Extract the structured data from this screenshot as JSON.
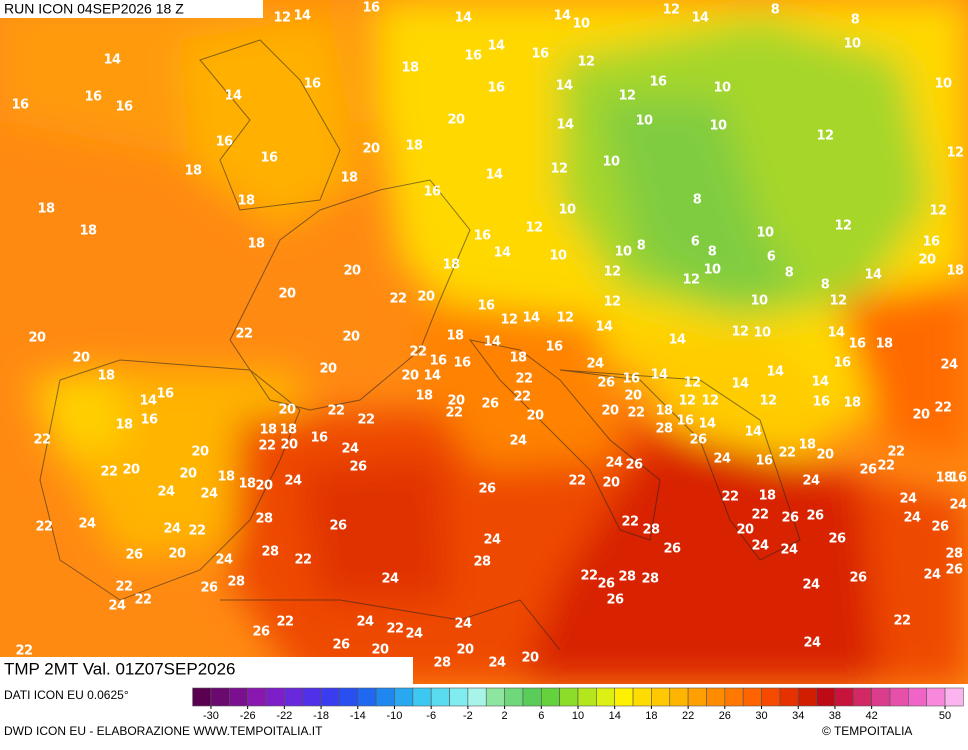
{
  "header": {
    "run": "RUN ICON 04SEP2026 18 Z",
    "field": "TMP 2MT Val. 01Z07SEP2026",
    "source": "DATI ICON EU 0.0625°",
    "credit": "DWD ICON EU - ELABORAZIONE WWW.TEMPOITALIA.IT",
    "brand": "© TEMPOITALIA"
  },
  "map": {
    "labels": [
      12,
      14,
      16,
      14,
      10,
      12,
      14,
      8,
      8,
      14,
      18,
      16,
      14,
      16,
      12,
      14,
      10,
      10,
      16,
      16,
      16,
      14,
      16,
      16,
      14,
      16,
      10,
      12,
      10,
      10,
      12,
      14,
      16,
      16,
      20,
      18,
      20,
      18,
      18,
      14,
      12,
      10,
      18,
      18,
      18,
      16,
      10,
      8,
      12,
      12,
      12,
      18,
      16,
      14,
      12,
      10,
      10,
      8,
      6,
      8,
      10,
      6,
      8,
      16,
      18,
      14,
      20,
      20,
      18,
      12,
      12,
      10,
      8,
      12,
      10,
      20,
      22,
      20,
      16,
      14,
      12,
      12,
      14,
      12,
      20,
      22,
      20,
      18,
      14,
      12,
      10,
      14,
      18,
      16,
      20,
      22,
      16,
      16,
      18,
      16,
      14,
      24,
      18,
      20,
      20,
      14,
      22,
      24,
      26,
      16,
      14,
      12,
      14,
      14,
      14,
      16,
      14,
      16,
      18,
      20,
      26,
      22,
      20,
      12,
      12,
      12,
      16,
      18,
      20,
      22,
      22,
      18,
      16,
      20,
      22,
      22,
      22,
      20,
      20,
      22,
      18,
      16,
      14,
      18,
      18,
      22,
      20,
      16,
      24,
      24,
      28,
      26,
      14,
      18,
      22,
      22,
      20,
      20,
      20,
      18,
      18,
      20,
      26,
      24,
      26,
      24,
      16,
      22,
      20,
      26,
      22,
      16,
      18,
      24,
      24,
      24,
      26,
      22,
      20,
      22,
      18,
      24,
      24,
      22,
      24,
      24,
      22,
      28,
      26,
      22,
      28,
      20,
      22,
      26,
      26,
      24,
      26,
      24,
      26,
      20,
      24,
      28,
      22,
      24,
      28,
      26,
      24,
      24,
      26,
      28,
      26,
      24,
      22,
      26,
      28,
      24,
      22,
      26,
      28,
      28,
      24,
      26,
      24,
      22,
      26,
      22,
      24,
      22,
      24,
      24,
      26,
      20,
      22,
      24,
      22,
      26,
      28,
      24,
      20,
      20,
      24,
      28,
      22
    ]
  },
  "legend": {
    "xlim": [
      -32,
      52
    ],
    "ticks": [
      -30,
      -26,
      -22,
      -18,
      -14,
      -10,
      -6,
      -2,
      2,
      6,
      10,
      14,
      18,
      22,
      26,
      30,
      34,
      38,
      42,
      50
    ],
    "colors": [
      "#5a0050",
      "#6a0a6e",
      "#7a1090",
      "#8a18b0",
      "#7d1ec8",
      "#6a28dc",
      "#5030e8",
      "#3a3cf0",
      "#2850f0",
      "#2068f0",
      "#1e88f0",
      "#28a8f0",
      "#3cc8f0",
      "#5adcf0",
      "#80ecf0",
      "#a8f4e8",
      "#8ce6a0",
      "#6ed87a",
      "#5acc5a",
      "#64d23c",
      "#8cdc2a",
      "#b4e61e",
      "#dcf014",
      "#fff000",
      "#ffdc00",
      "#ffc800",
      "#ffb400",
      "#ffa000",
      "#ff8c00",
      "#ff7800",
      "#ff6400",
      "#f54a00",
      "#e63200",
      "#d21e00",
      "#be0a14",
      "#c8143c",
      "#d22864",
      "#dc3c8c",
      "#e650aa",
      "#f064c8",
      "#f888dc",
      "#fcb4ee"
    ]
  }
}
